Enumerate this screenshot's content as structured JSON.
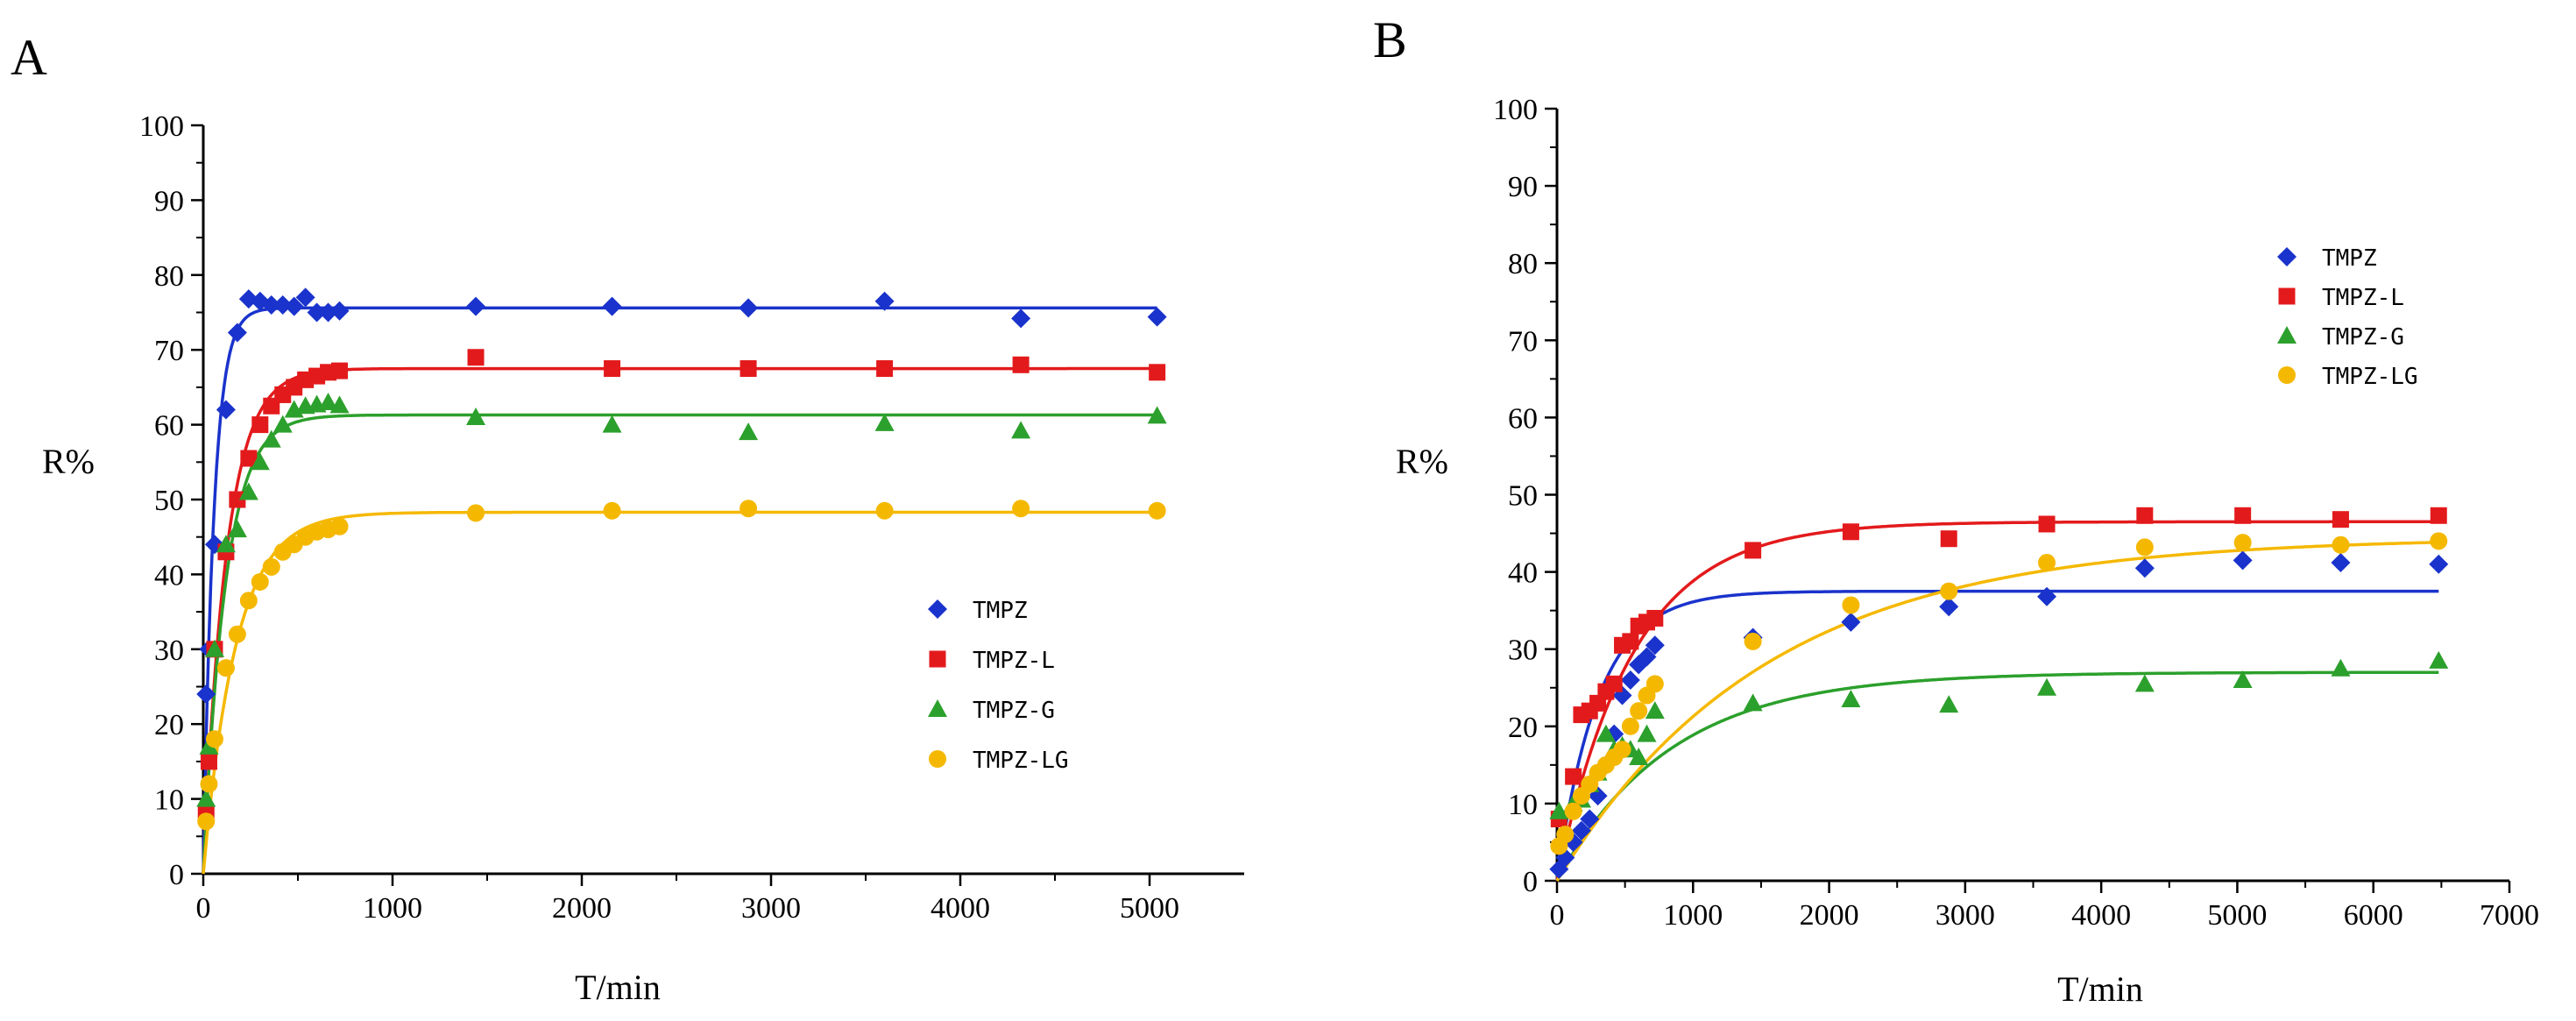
{
  "chart_data": [
    {
      "panel": "A",
      "type": "scatter",
      "xlabel": "T/min",
      "ylabel": "R%",
      "xlim": [
        0,
        5500
      ],
      "ylim": [
        0,
        100
      ],
      "xticks": [
        0,
        1000,
        2000,
        3000,
        4000,
        5000
      ],
      "yticks": [
        0,
        10,
        20,
        30,
        40,
        50,
        60,
        70,
        80,
        90,
        100
      ],
      "xtick_labels": [
        "0",
        "1000",
        "2000",
        "3000",
        "4000",
        "5000"
      ],
      "ytick_labels": [
        "0",
        "10",
        "20",
        "30",
        "40",
        "50",
        "60",
        "70",
        "80",
        "90",
        "100"
      ],
      "fit_lines": true,
      "legend_position": "center-right",
      "series": [
        {
          "name": "TMPZ",
          "marker": "diamond",
          "color": "#1a33cc",
          "fit_plateau": 75.6,
          "fit_rate": 0.018,
          "points": [
            [
              15,
              24
            ],
            [
              30,
              30
            ],
            [
              60,
              44
            ],
            [
              120,
              62
            ],
            [
              180,
              72.3
            ],
            [
              240,
              76.8
            ],
            [
              300,
              76.5
            ],
            [
              360,
              76
            ],
            [
              420,
              76
            ],
            [
              480,
              75.8
            ],
            [
              540,
              77
            ],
            [
              600,
              75
            ],
            [
              660,
              75
            ],
            [
              720,
              75.2
            ],
            [
              1440,
              75.8
            ],
            [
              2160,
              75.8
            ],
            [
              2880,
              75.6
            ],
            [
              3600,
              76.5
            ],
            [
              4320,
              74.2
            ],
            [
              5040,
              74.4
            ]
          ]
        },
        {
          "name": "TMPZ-L",
          "marker": "square",
          "color": "#e31a1c",
          "fit_plateau": 67.5,
          "fit_rate": 0.0082,
          "points": [
            [
              15,
              8
            ],
            [
              30,
              15
            ],
            [
              60,
              30
            ],
            [
              120,
              43
            ],
            [
              180,
              50
            ],
            [
              240,
              55.5
            ],
            [
              300,
              60
            ],
            [
              360,
              62.5
            ],
            [
              420,
              64
            ],
            [
              480,
              65
            ],
            [
              540,
              66
            ],
            [
              600,
              66.5
            ],
            [
              660,
              67
            ],
            [
              720,
              67.2
            ],
            [
              1440,
              69
            ],
            [
              2160,
              67.5
            ],
            [
              2880,
              67.5
            ],
            [
              3600,
              67.5
            ],
            [
              4320,
              68
            ],
            [
              5040,
              67
            ]
          ]
        },
        {
          "name": "TMPZ-G",
          "marker": "triangle",
          "color": "#2ca02c",
          "fit_plateau": 61.3,
          "fit_rate": 0.0085,
          "points": [
            [
              15,
              10
            ],
            [
              30,
              17
            ],
            [
              60,
              30
            ],
            [
              120,
              44
            ],
            [
              180,
              46
            ],
            [
              240,
              51
            ],
            [
              300,
              55
            ],
            [
              360,
              58
            ],
            [
              420,
              60
            ],
            [
              480,
              62
            ],
            [
              540,
              62.5
            ],
            [
              600,
              62.7
            ],
            [
              660,
              63
            ],
            [
              720,
              62.6
            ],
            [
              1440,
              61
            ],
            [
              2160,
              60
            ],
            [
              2880,
              59
            ],
            [
              3600,
              60.2
            ],
            [
              4320,
              59.2
            ],
            [
              5040,
              61.2
            ]
          ]
        },
        {
          "name": "TMPZ-LG",
          "marker": "circle",
          "color": "#f5b800",
          "fit_plateau": 48.3,
          "fit_rate": 0.0058,
          "points": [
            [
              15,
              7
            ],
            [
              30,
              12
            ],
            [
              60,
              18
            ],
            [
              120,
              27.5
            ],
            [
              180,
              32
            ],
            [
              240,
              36.5
            ],
            [
              300,
              39
            ],
            [
              360,
              41
            ],
            [
              420,
              43
            ],
            [
              480,
              44
            ],
            [
              540,
              45
            ],
            [
              600,
              45.7
            ],
            [
              660,
              46
            ],
            [
              720,
              46.4
            ],
            [
              1440,
              48.2
            ],
            [
              2160,
              48.5
            ],
            [
              2880,
              48.8
            ],
            [
              3600,
              48.5
            ],
            [
              4320,
              48.8
            ],
            [
              5040,
              48.5
            ]
          ]
        }
      ]
    },
    {
      "panel": "B",
      "type": "scatter",
      "xlabel": "T/min",
      "ylabel": "R%",
      "xlim": [
        0,
        7000
      ],
      "ylim": [
        0,
        100
      ],
      "xticks": [
        0,
        1000,
        2000,
        3000,
        4000,
        5000,
        6000,
        7000
      ],
      "yticks": [
        0,
        10,
        20,
        30,
        40,
        50,
        60,
        70,
        80,
        90,
        100
      ],
      "xtick_labels": [
        "0",
        "1000",
        "2000",
        "3000",
        "4000",
        "5000",
        "6000",
        "7000"
      ],
      "ytick_labels": [
        "0",
        "10",
        "20",
        "30",
        "40",
        "50",
        "60",
        "70",
        "80",
        "90",
        "100"
      ],
      "fit_lines": true,
      "legend_position": "top-right",
      "series": [
        {
          "name": "TMPZ",
          "marker": "diamond",
          "color": "#1a33cc",
          "fit_plateau": 37.5,
          "fit_rate": 0.0033,
          "points": [
            [
              15,
              1.5
            ],
            [
              60,
              3
            ],
            [
              120,
              5
            ],
            [
              180,
              6.5
            ],
            [
              240,
              8
            ],
            [
              300,
              11
            ],
            [
              360,
              15
            ],
            [
              420,
              19
            ],
            [
              480,
              24
            ],
            [
              540,
              26
            ],
            [
              600,
              28
            ],
            [
              660,
              29
            ],
            [
              720,
              30.5
            ],
            [
              1440,
              31.5
            ],
            [
              2160,
              33.5
            ],
            [
              2880,
              35.5
            ],
            [
              3600,
              36.8
            ],
            [
              4320,
              40.5
            ],
            [
              5040,
              41.5
            ],
            [
              5760,
              41.2
            ],
            [
              6480,
              41
            ]
          ]
        },
        {
          "name": "TMPZ-L",
          "marker": "square",
          "color": "#e31a1c",
          "fit_plateau": 46.5,
          "fit_rate": 0.0018,
          "points": [
            [
              15,
              8
            ],
            [
              120,
              13.5
            ],
            [
              180,
              21.5
            ],
            [
              240,
              22
            ],
            [
              300,
              23
            ],
            [
              360,
              24.5
            ],
            [
              420,
              25.5
            ],
            [
              480,
              30.5
            ],
            [
              540,
              31
            ],
            [
              600,
              33
            ],
            [
              660,
              33.5
            ],
            [
              720,
              34
            ],
            [
              1440,
              42.8
            ],
            [
              2160,
              45.2
            ],
            [
              2880,
              44.3
            ],
            [
              3600,
              46.2
            ],
            [
              4320,
              47.3
            ],
            [
              5040,
              47.3
            ],
            [
              5760,
              46.8
            ],
            [
              6480,
              47.3
            ]
          ]
        },
        {
          "name": "TMPZ-G",
          "marker": "triangle",
          "color": "#2ca02c",
          "fit_plateau": 27,
          "fit_rate": 0.0012,
          "points": [
            [
              15,
              9
            ],
            [
              120,
              10
            ],
            [
              180,
              10.5
            ],
            [
              240,
              12.5
            ],
            [
              300,
              14
            ],
            [
              360,
              19
            ],
            [
              420,
              17
            ],
            [
              480,
              17.5
            ],
            [
              540,
              17
            ],
            [
              600,
              16
            ],
            [
              660,
              19
            ],
            [
              720,
              22
            ],
            [
              1440,
              23
            ],
            [
              2160,
              23.5
            ],
            [
              2880,
              22.8
            ],
            [
              3600,
              25
            ],
            [
              4320,
              25.5
            ],
            [
              5040,
              26
            ],
            [
              5760,
              27.5
            ],
            [
              6480,
              28.5
            ]
          ]
        },
        {
          "name": "TMPZ-LG",
          "marker": "circle",
          "color": "#f5b800",
          "fit_plateau": 44.5,
          "fit_rate": 0.00065,
          "points": [
            [
              15,
              4.5
            ],
            [
              60,
              6
            ],
            [
              120,
              9
            ],
            [
              180,
              11
            ],
            [
              240,
              12.5
            ],
            [
              300,
              14
            ],
            [
              360,
              15
            ],
            [
              420,
              16
            ],
            [
              480,
              17
            ],
            [
              540,
              20
            ],
            [
              600,
              22
            ],
            [
              660,
              24
            ],
            [
              720,
              25.5
            ],
            [
              1440,
              31
            ],
            [
              2160,
              35.7
            ],
            [
              2880,
              37.5
            ],
            [
              3600,
              41.2
            ],
            [
              4320,
              43.2
            ],
            [
              5040,
              43.8
            ],
            [
              5760,
              43.5
            ],
            [
              6480,
              44
            ]
          ]
        }
      ]
    }
  ]
}
